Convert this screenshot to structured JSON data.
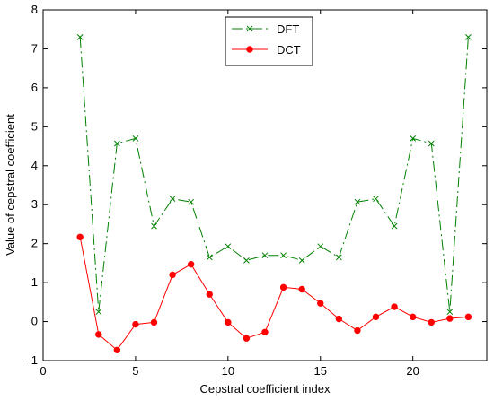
{
  "chart_data": {
    "type": "line",
    "xlabel": "Cepstral coefficient index",
    "ylabel": "Value of cepstral coefficient",
    "xlim": [
      0,
      24
    ],
    "ylim": [
      -1,
      8
    ],
    "xticks": [
      0,
      5,
      10,
      15,
      20
    ],
    "yticks": [
      -1,
      0,
      1,
      2,
      3,
      4,
      5,
      6,
      7,
      8
    ],
    "grid": false,
    "legend_position": "top-center",
    "series": [
      {
        "name": "DFT",
        "color": "#008000",
        "marker": "x",
        "line_style": "dash-dot",
        "x": [
          2,
          3,
          4,
          5,
          6,
          7,
          8,
          9,
          10,
          11,
          12,
          13,
          14,
          15,
          16,
          17,
          18,
          19,
          20,
          21,
          22,
          23
        ],
        "values": [
          7.3,
          0.25,
          4.57,
          4.7,
          2.45,
          3.15,
          3.07,
          1.65,
          1.93,
          1.57,
          1.7,
          1.7,
          1.57,
          1.93,
          1.65,
          3.07,
          3.15,
          2.45,
          4.7,
          4.57,
          0.25,
          7.3
        ]
      },
      {
        "name": "DCT",
        "color": "#ff0000",
        "marker": "circle",
        "line_style": "solid",
        "x": [
          2,
          3,
          4,
          5,
          6,
          7,
          8,
          9,
          10,
          11,
          12,
          13,
          14,
          15,
          16,
          17,
          18,
          19,
          20,
          21,
          22,
          23
        ],
        "values": [
          2.17,
          -0.33,
          -0.73,
          -0.07,
          -0.02,
          1.2,
          1.47,
          0.7,
          -0.02,
          -0.43,
          -0.27,
          0.88,
          0.83,
          0.47,
          0.07,
          -0.23,
          0.12,
          0.38,
          0.12,
          -0.02,
          0.08,
          0.12
        ]
      }
    ]
  }
}
